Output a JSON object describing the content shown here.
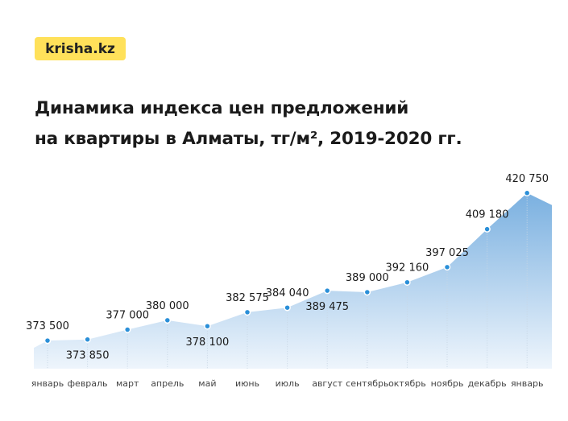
{
  "logo": "krisha.kz",
  "title_line1": "Динамика индекса цен предложений",
  "title_line2": "на квартиры в Алматы, тг/м², 2019-2020 гг.",
  "colors": {
    "accent": "#ffe15a",
    "area": "#7fb2e0",
    "point": "#2a8fd8"
  },
  "chart_data": {
    "type": "area",
    "categories": [
      "январь",
      "февраль",
      "март",
      "апрель",
      "май",
      "июнь",
      "июль",
      "август",
      "сентябрь",
      "октябрь",
      "ноябрь",
      "декабрь",
      "январь"
    ],
    "values": [
      373500,
      373850,
      377000,
      380000,
      378100,
      382575,
      384040,
      389475,
      389000,
      392160,
      397025,
      409180,
      420750
    ],
    "data_labels": [
      "373 500",
      "373 850",
      "377 000",
      "380 000",
      "378 100",
      "382 575",
      "384 040",
      "389 475",
      "389 000",
      "392 160",
      "397 025",
      "409 180",
      "420 750"
    ],
    "label_placement": [
      "above",
      "below",
      "above",
      "above",
      "below",
      "above",
      "above",
      "below",
      "above",
      "above",
      "above",
      "above",
      "above"
    ],
    "ylim": [
      364500,
      431000
    ],
    "grid": false
  }
}
